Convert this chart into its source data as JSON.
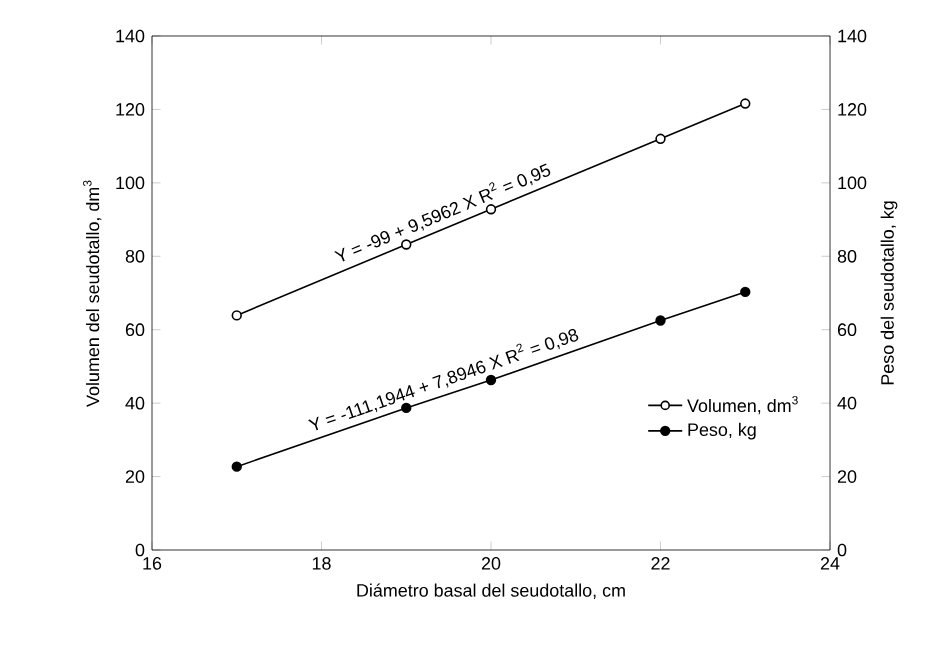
{
  "chart_data": {
    "type": "line",
    "xlabel": "Diámetro basal del seudotallo, cm",
    "ylabel": "Volumen del seudotallo, dm$^{3}$",
    "y2label": "Peso del seudotallo, kg",
    "x": [
      17,
      19,
      20,
      22,
      23
    ],
    "series": [
      {
        "name": "Volumen, dm$^{3}$",
        "color": "#ffffff",
        "values": [
          63.9,
          83.2,
          92.8,
          112,
          121.6
        ]
      },
      {
        "name": "Peso, kg",
        "color": "#000000",
        "axis": "y2",
        "values": [
          22.7,
          38.7,
          46.3,
          62.5,
          70.3
        ]
      }
    ],
    "xlim": [
      16,
      24
    ],
    "xticks": [
      16,
      18,
      20,
      22,
      24
    ],
    "ylim": [
      0,
      140
    ],
    "yticks": [
      0,
      20,
      40,
      60,
      80,
      100,
      120,
      140
    ],
    "y2lim": [
      0,
      140
    ],
    "y2ticks": [
      0,
      20,
      40,
      60,
      80,
      100,
      120,
      140
    ],
    "annotations": [
      "Y = -99 + 9,5962 X    R$^{2}$ = 0,95",
      "Y = -111,1944 + 7,8946 X  R$^{2}$ = 0,98"
    ],
    "marker": "circle",
    "line_style": "solid",
    "legend": "bottom right",
    "grid": false
  }
}
